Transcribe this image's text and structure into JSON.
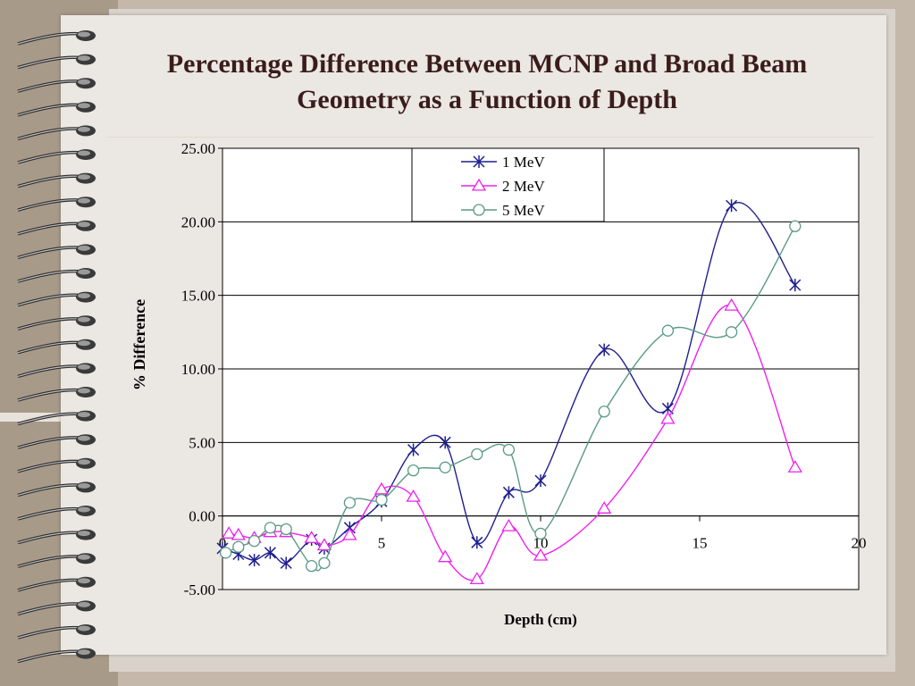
{
  "slide": {
    "title_line1": "Percentage Difference Between MCNP and Broad Beam",
    "title_line2": "Geometry as a Function of Depth"
  },
  "chart_data": {
    "type": "line",
    "xlabel": "Depth (cm)",
    "ylabel": "% Difference",
    "xlim": [
      0,
      20
    ],
    "ylim": [
      -5,
      25
    ],
    "x_ticks": [
      "0",
      "5",
      "10",
      "15",
      "20"
    ],
    "y_ticks": [
      "-5.00",
      "0.00",
      "5.00",
      "10.00",
      "15.00",
      "20.00",
      "25.00"
    ],
    "grid": "horizontal",
    "legend_position": "top-center",
    "series": [
      {
        "name": "1 MeV",
        "marker": "asterisk",
        "color": "#1f1f8f",
        "x": [
          0,
          0.5,
          1,
          1.5,
          2,
          2.8,
          3.2,
          4,
          5,
          6,
          7,
          8,
          9,
          10,
          12,
          14,
          16,
          18
        ],
        "y": [
          -2.2,
          -2.6,
          -3.0,
          -2.5,
          -3.2,
          -1.6,
          -2.2,
          -0.8,
          1.0,
          4.5,
          5.0,
          -1.8,
          1.6,
          2.4,
          11.3,
          7.3,
          21.1,
          15.7
        ]
      },
      {
        "name": "2 MeV",
        "marker": "triangle",
        "color": "#ee22ee",
        "x": [
          0.2,
          0.5,
          1,
          1.5,
          2,
          2.8,
          3.2,
          4,
          5,
          6,
          7,
          8,
          9,
          10,
          12,
          14,
          16,
          18
        ],
        "y": [
          -1.2,
          -1.3,
          -1.5,
          -1.1,
          -1.1,
          -1.5,
          -2.0,
          -1.3,
          1.8,
          1.3,
          -2.8,
          -4.3,
          -0.7,
          -2.7,
          0.5,
          6.6,
          14.3,
          3.3
        ]
      },
      {
        "name": "5 MeV",
        "marker": "circle",
        "color": "#5a9a83",
        "x": [
          0.1,
          0.5,
          1,
          1.5,
          2,
          2.8,
          3.2,
          4,
          5,
          6,
          7,
          8,
          9,
          10,
          12,
          14,
          16,
          18
        ],
        "y": [
          -2.5,
          -2.1,
          -1.7,
          -0.8,
          -0.9,
          -3.4,
          -3.2,
          0.9,
          1.1,
          3.1,
          3.3,
          4.2,
          4.5,
          -1.2,
          7.1,
          12.6,
          12.5,
          19.7
        ]
      }
    ]
  }
}
